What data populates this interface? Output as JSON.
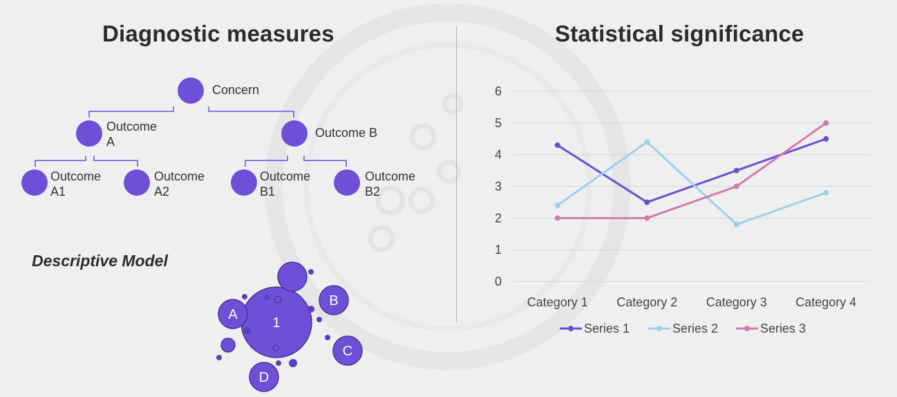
{
  "left": {
    "title": "Diagnostic measures",
    "tree": {
      "root": "Concern",
      "outcome_a": [
        "Outcome",
        "A"
      ],
      "outcome_b": "Outcome B",
      "outcome_a1": [
        "Outcome",
        "A1"
      ],
      "outcome_a2": [
        "Outcome",
        "A2"
      ],
      "outcome_b1": [
        "Outcome",
        "B1"
      ],
      "outcome_b2": [
        "Outcome",
        "B2"
      ]
    },
    "model_title": "Descriptive Model",
    "bubbles": {
      "center": "1",
      "a": "A",
      "b": "B",
      "c": "C",
      "d": "D"
    }
  },
  "right": {
    "title": "Statistical significance"
  },
  "colors": {
    "node": "#6e4fd8",
    "series1": "#6a4fcf",
    "series2": "#9fd0ec",
    "series3": "#d37aac",
    "grid": "#d4d4d4",
    "divider": "#b7b0cf"
  },
  "chart_data": {
    "type": "line",
    "categories": [
      "Category 1",
      "Category 2",
      "Category 3",
      "Category 4"
    ],
    "series": [
      {
        "name": "Series 1",
        "values": [
          4.3,
          2.5,
          3.5,
          4.5
        ]
      },
      {
        "name": "Series 2",
        "values": [
          2.4,
          4.4,
          1.8,
          2.8
        ]
      },
      {
        "name": "Series 3",
        "values": [
          2,
          2,
          3,
          5
        ]
      }
    ],
    "ylim": [
      0,
      6
    ],
    "yticks": [
      "0",
      "1",
      "2",
      "3",
      "4",
      "5",
      "6"
    ],
    "title": "",
    "xlabel": "",
    "ylabel": "",
    "legend": "bottom",
    "grid": true
  }
}
